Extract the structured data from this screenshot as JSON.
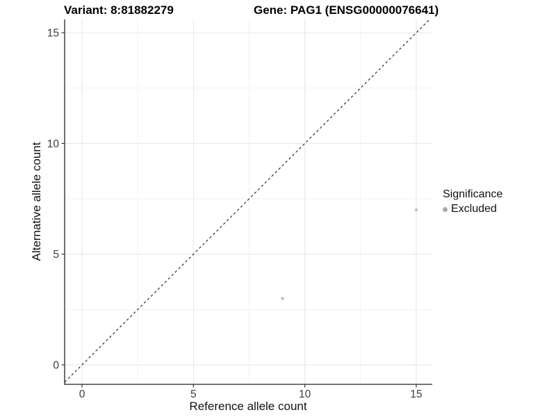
{
  "chart_data": {
    "type": "scatter",
    "titles": {
      "variant": "Variant: 8:81882279",
      "gene": "Gene: PAG1 (ENSG00000076641)"
    },
    "xlabel": "Reference allele count",
    "ylabel": "Alternative allele count",
    "xticks": [
      0,
      5,
      10,
      15
    ],
    "yticks": [
      0,
      5,
      10,
      15
    ],
    "minor_ticks_x": [
      2.5,
      7.5,
      12.5
    ],
    "minor_ticks_y": [
      2.5,
      7.5,
      12.5
    ],
    "xlim": [
      -0.78,
      15.72
    ],
    "ylim": [
      -0.88,
      15.6
    ],
    "grid": "major+minor",
    "identity_line": {
      "slope": 1,
      "intercept": 0,
      "style": "dashed",
      "color": "#1a1a1a"
    },
    "series": [
      {
        "name": "Excluded",
        "color": "#bdbdbd",
        "point_radius": 2.2,
        "points": [
          {
            "x": 9,
            "y": 3
          },
          {
            "x": 15,
            "y": 7
          }
        ]
      }
    ],
    "legend": {
      "title": "Significance",
      "position": "right",
      "entries": [
        {
          "label": "Excluded",
          "color": "#a9a9a9"
        }
      ]
    }
  },
  "colors": {
    "background": "#ffffff",
    "axis_line": "#222222",
    "tick_mark": "#333333",
    "tick_label": "#3d3d3d",
    "grid_major": "#e6e6e6",
    "grid_minor": "#f2f2f2"
  }
}
